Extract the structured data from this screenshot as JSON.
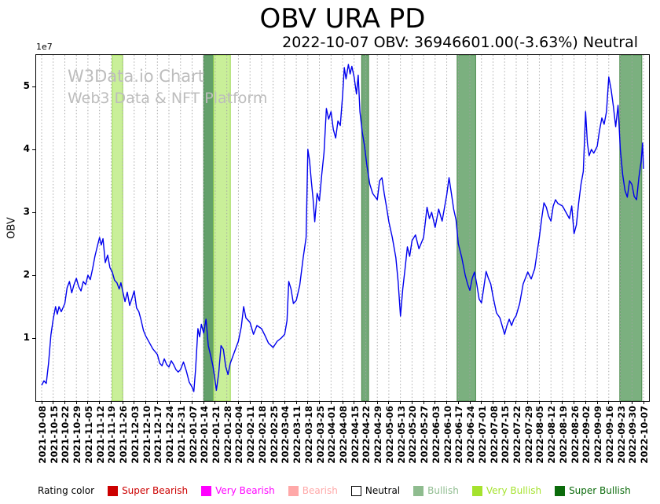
{
  "header": {
    "title": "OBV URA PD",
    "subtitle": "2022-10-07 OBV: 36946601.00(-3.63%) Neutral"
  },
  "watermark": {
    "line1": "W3Data.io Chart",
    "line2": "Web3 Data & NFT Platform"
  },
  "chart_data": {
    "type": "line",
    "title": "OBV URA PD",
    "subtitle": "2022-10-07 OBV: 36946601.00(-3.63%) Neutral",
    "ylabel": "OBV",
    "y_offset_text": "1e7",
    "y_unit": 10000000,
    "ylim": [
      0,
      5.5
    ],
    "yticks": [
      1,
      2,
      3,
      4,
      5
    ],
    "grid": "vertical-dotted",
    "last_date": "2022-10-07",
    "last_value": 36946601.0,
    "change_pct": -3.63,
    "rating": "Neutral",
    "x_tick_labels": [
      "2021-10-08",
      "2021-10-15",
      "2021-10-22",
      "2021-10-29",
      "2021-11-05",
      "2021-11-12",
      "2021-11-19",
      "2021-11-26",
      "2021-12-03",
      "2021-12-10",
      "2021-12-17",
      "2021-12-24",
      "2021-12-31",
      "2022-01-07",
      "2022-01-14",
      "2022-01-21",
      "2022-01-28",
      "2022-02-04",
      "2022-02-11",
      "2022-02-18",
      "2022-02-25",
      "2022-03-04",
      "2022-03-11",
      "2022-03-18",
      "2022-03-25",
      "2022-04-01",
      "2022-04-08",
      "2022-04-15",
      "2022-04-22",
      "2022-04-29",
      "2022-05-06",
      "2022-05-13",
      "2022-05-20",
      "2022-05-27",
      "2022-06-03",
      "2022-06-10",
      "2022-06-17",
      "2022-06-24",
      "2022-07-01",
      "2022-07-08",
      "2022-07-15",
      "2022-07-22",
      "2022-07-29",
      "2022-08-05",
      "2022-08-12",
      "2022-08-19",
      "2022-08-26",
      "2022-09-02",
      "2022-09-09",
      "2022-09-16",
      "2022-09-23",
      "2022-09-30",
      "2022-10-07"
    ],
    "bands": [
      {
        "rating": "Very Bullish",
        "from": 6.1,
        "to": 7.0,
        "fill": "#c9ef99",
        "edge": "#9bd94f"
      },
      {
        "rating": "Super Bullish",
        "from": 14.0,
        "to": 14.85,
        "fill": "#63a06a",
        "edge": "#3c7d44"
      },
      {
        "rating": "Very Bullish",
        "from": 14.85,
        "to": 16.3,
        "fill": "#c9ef99",
        "edge": "#9bd94f"
      },
      {
        "rating": "Super Bullish",
        "from": 27.65,
        "to": 28.25,
        "fill": "#74aa79",
        "edge": "#41803f"
      },
      {
        "rating": "Super Bullish",
        "from": 35.9,
        "to": 37.5,
        "fill": "#7bb07f",
        "edge": "#4a8a4a"
      },
      {
        "rating": "Super Bullish",
        "from": 49.95,
        "to": 51.85,
        "fill": "#7bb07f",
        "edge": "#4a8a4a"
      }
    ],
    "series": [
      {
        "name": "OBV",
        "color": "#0000ee",
        "points": [
          [
            0,
            0.25
          ],
          [
            0.2,
            0.32
          ],
          [
            0.4,
            0.28
          ],
          [
            0.6,
            0.6
          ],
          [
            0.8,
            1.05
          ],
          [
            1,
            1.3
          ],
          [
            1.2,
            1.5
          ],
          [
            1.35,
            1.38
          ],
          [
            1.5,
            1.5
          ],
          [
            1.7,
            1.42
          ],
          [
            2,
            1.55
          ],
          [
            2.2,
            1.8
          ],
          [
            2.4,
            1.9
          ],
          [
            2.6,
            1.72
          ],
          [
            2.8,
            1.85
          ],
          [
            3,
            1.95
          ],
          [
            3.2,
            1.82
          ],
          [
            3.4,
            1.75
          ],
          [
            3.6,
            1.9
          ],
          [
            3.8,
            1.85
          ],
          [
            4,
            2.0
          ],
          [
            4.2,
            1.93
          ],
          [
            4.4,
            2.1
          ],
          [
            4.6,
            2.3
          ],
          [
            4.8,
            2.45
          ],
          [
            5,
            2.6
          ],
          [
            5.15,
            2.48
          ],
          [
            5.3,
            2.58
          ],
          [
            5.5,
            2.2
          ],
          [
            5.7,
            2.32
          ],
          [
            5.9,
            2.12
          ],
          [
            6.1,
            2.05
          ],
          [
            6.3,
            1.92
          ],
          [
            6.5,
            1.88
          ],
          [
            6.7,
            1.78
          ],
          [
            6.85,
            1.88
          ],
          [
            7,
            1.75
          ],
          [
            7.2,
            1.58
          ],
          [
            7.4,
            1.73
          ],
          [
            7.6,
            1.52
          ],
          [
            7.8,
            1.63
          ],
          [
            8,
            1.75
          ],
          [
            8.2,
            1.48
          ],
          [
            8.4,
            1.42
          ],
          [
            8.6,
            1.28
          ],
          [
            8.8,
            1.12
          ],
          [
            9,
            1.03
          ],
          [
            9.3,
            0.93
          ],
          [
            9.6,
            0.83
          ],
          [
            10,
            0.74
          ],
          [
            10.2,
            0.6
          ],
          [
            10.4,
            0.56
          ],
          [
            10.6,
            0.67
          ],
          [
            10.8,
            0.58
          ],
          [
            11,
            0.54
          ],
          [
            11.2,
            0.64
          ],
          [
            11.4,
            0.58
          ],
          [
            11.6,
            0.5
          ],
          [
            11.8,
            0.46
          ],
          [
            12,
            0.5
          ],
          [
            12.25,
            0.62
          ],
          [
            12.5,
            0.48
          ],
          [
            12.75,
            0.3
          ],
          [
            13,
            0.22
          ],
          [
            13.15,
            0.15
          ],
          [
            13.3,
            0.5
          ],
          [
            13.5,
            1.15
          ],
          [
            13.65,
            1.02
          ],
          [
            13.8,
            1.22
          ],
          [
            14,
            1.08
          ],
          [
            14.2,
            1.3
          ],
          [
            14.4,
            0.88
          ],
          [
            14.6,
            0.72
          ],
          [
            14.8,
            0.56
          ],
          [
            15,
            0.3
          ],
          [
            15.1,
            0.17
          ],
          [
            15.3,
            0.45
          ],
          [
            15.5,
            0.88
          ],
          [
            15.7,
            0.82
          ],
          [
            15.9,
            0.55
          ],
          [
            16.1,
            0.42
          ],
          [
            16.3,
            0.6
          ],
          [
            16.6,
            0.75
          ],
          [
            17,
            0.95
          ],
          [
            17.25,
            1.18
          ],
          [
            17.45,
            1.5
          ],
          [
            17.65,
            1.32
          ],
          [
            18,
            1.25
          ],
          [
            18.3,
            1.06
          ],
          [
            18.6,
            1.2
          ],
          [
            19,
            1.15
          ],
          [
            19.3,
            1.04
          ],
          [
            19.6,
            0.92
          ],
          [
            20,
            0.85
          ],
          [
            20.35,
            0.95
          ],
          [
            20.7,
            1.0
          ],
          [
            21,
            1.06
          ],
          [
            21.2,
            1.28
          ],
          [
            21.35,
            1.9
          ],
          [
            21.55,
            1.78
          ],
          [
            21.75,
            1.55
          ],
          [
            22,
            1.6
          ],
          [
            22.3,
            1.84
          ],
          [
            22.6,
            2.28
          ],
          [
            22.85,
            2.6
          ],
          [
            23,
            4.0
          ],
          [
            23.15,
            3.82
          ],
          [
            23.3,
            3.5
          ],
          [
            23.45,
            3.22
          ],
          [
            23.6,
            2.85
          ],
          [
            23.8,
            3.3
          ],
          [
            24,
            3.18
          ],
          [
            24.2,
            3.6
          ],
          [
            24.4,
            3.95
          ],
          [
            24.6,
            4.65
          ],
          [
            24.8,
            4.48
          ],
          [
            25,
            4.6
          ],
          [
            25.2,
            4.32
          ],
          [
            25.4,
            4.18
          ],
          [
            25.6,
            4.45
          ],
          [
            25.8,
            4.38
          ],
          [
            26,
            4.85
          ],
          [
            26.15,
            5.3
          ],
          [
            26.3,
            5.12
          ],
          [
            26.5,
            5.35
          ],
          [
            26.65,
            5.2
          ],
          [
            26.8,
            5.32
          ],
          [
            27,
            5.15
          ],
          [
            27.2,
            4.88
          ],
          [
            27.35,
            5.18
          ],
          [
            27.5,
            4.6
          ],
          [
            27.7,
            4.28
          ],
          [
            27.9,
            4.05
          ],
          [
            28.1,
            3.75
          ],
          [
            28.35,
            3.45
          ],
          [
            28.6,
            3.3
          ],
          [
            29,
            3.2
          ],
          [
            29.2,
            3.5
          ],
          [
            29.4,
            3.55
          ],
          [
            29.6,
            3.3
          ],
          [
            29.8,
            3.08
          ],
          [
            30,
            2.85
          ],
          [
            30.3,
            2.6
          ],
          [
            30.6,
            2.28
          ],
          [
            30.8,
            1.9
          ],
          [
            31,
            1.35
          ],
          [
            31.2,
            1.78
          ],
          [
            31.4,
            2.1
          ],
          [
            31.6,
            2.45
          ],
          [
            31.8,
            2.3
          ],
          [
            32,
            2.55
          ],
          [
            32.3,
            2.64
          ],
          [
            32.6,
            2.42
          ],
          [
            33,
            2.6
          ],
          [
            33.3,
            3.08
          ],
          [
            33.5,
            2.9
          ],
          [
            33.7,
            3.0
          ],
          [
            34,
            2.76
          ],
          [
            34.3,
            3.05
          ],
          [
            34.6,
            2.86
          ],
          [
            35,
            3.28
          ],
          [
            35.2,
            3.55
          ],
          [
            35.4,
            3.3
          ],
          [
            35.6,
            3.05
          ],
          [
            35.8,
            2.88
          ],
          [
            36,
            2.5
          ],
          [
            36.3,
            2.28
          ],
          [
            36.6,
            2.0
          ],
          [
            36.8,
            1.86
          ],
          [
            37,
            1.76
          ],
          [
            37.2,
            1.95
          ],
          [
            37.4,
            2.05
          ],
          [
            37.6,
            1.85
          ],
          [
            37.8,
            1.62
          ],
          [
            38,
            1.56
          ],
          [
            38.2,
            1.8
          ],
          [
            38.4,
            2.06
          ],
          [
            38.6,
            1.95
          ],
          [
            38.8,
            1.86
          ],
          [
            39,
            1.66
          ],
          [
            39.3,
            1.4
          ],
          [
            39.6,
            1.32
          ],
          [
            40,
            1.06
          ],
          [
            40.2,
            1.2
          ],
          [
            40.4,
            1.3
          ],
          [
            40.6,
            1.2
          ],
          [
            40.8,
            1.3
          ],
          [
            41,
            1.36
          ],
          [
            41.3,
            1.55
          ],
          [
            41.6,
            1.86
          ],
          [
            42,
            2.05
          ],
          [
            42.3,
            1.94
          ],
          [
            42.6,
            2.1
          ],
          [
            43,
            2.6
          ],
          [
            43.2,
            2.9
          ],
          [
            43.4,
            3.15
          ],
          [
            43.6,
            3.08
          ],
          [
            43.8,
            2.94
          ],
          [
            44,
            2.86
          ],
          [
            44.2,
            3.1
          ],
          [
            44.4,
            3.2
          ],
          [
            44.6,
            3.14
          ],
          [
            45,
            3.1
          ],
          [
            45.3,
            3.0
          ],
          [
            45.6,
            2.9
          ],
          [
            45.8,
            3.1
          ],
          [
            46,
            2.66
          ],
          [
            46.2,
            2.8
          ],
          [
            46.4,
            3.15
          ],
          [
            46.6,
            3.45
          ],
          [
            46.8,
            3.65
          ],
          [
            47,
            4.6
          ],
          [
            47.15,
            4.1
          ],
          [
            47.3,
            3.9
          ],
          [
            47.5,
            4.0
          ],
          [
            47.7,
            3.94
          ],
          [
            48,
            4.05
          ],
          [
            48.2,
            4.3
          ],
          [
            48.4,
            4.5
          ],
          [
            48.6,
            4.4
          ],
          [
            48.8,
            4.6
          ],
          [
            49,
            5.15
          ],
          [
            49.2,
            4.95
          ],
          [
            49.4,
            4.68
          ],
          [
            49.6,
            4.36
          ],
          [
            49.8,
            4.7
          ],
          [
            50,
            4.0
          ],
          [
            50.2,
            3.6
          ],
          [
            50.4,
            3.35
          ],
          [
            50.6,
            3.24
          ],
          [
            50.8,
            3.5
          ],
          [
            51,
            3.44
          ],
          [
            51.2,
            3.25
          ],
          [
            51.4,
            3.2
          ],
          [
            51.6,
            3.55
          ],
          [
            51.8,
            3.82
          ],
          [
            51.92,
            4.1
          ],
          [
            52,
            3.69
          ]
        ]
      }
    ]
  },
  "legend": {
    "title": "Rating color",
    "items": [
      {
        "label": "Super Bearish",
        "color": "#cc0000",
        "edge": "#cc0000"
      },
      {
        "label": "Very Bearish",
        "color": "#ff00ff",
        "edge": "#ff00ff"
      },
      {
        "label": "Bearish",
        "color": "#ffa8a8",
        "edge": "#ffa8a8"
      },
      {
        "label": "Neutral",
        "color": "#ffffff",
        "edge": "#000000",
        "text_color": "#000000"
      },
      {
        "label": "Bullish",
        "color": "#8fbc8f",
        "edge": "#8fbc8f"
      },
      {
        "label": "Very Bullish",
        "color": "#a5e22d",
        "edge": "#a5e22d"
      },
      {
        "label": "Super Bullish",
        "color": "#0b6b0b",
        "edge": "#0b6b0b"
      }
    ]
  }
}
